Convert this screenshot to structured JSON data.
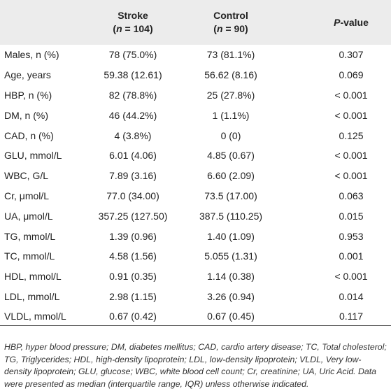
{
  "table": {
    "header": [
      {
        "line1": ""
      },
      {
        "line1": "Stroke",
        "open": "(",
        "n": "n",
        "rest": " = 104)"
      },
      {
        "line1": "Control",
        "open": "(",
        "n": "n",
        "rest": " = 90)"
      },
      {
        "p": "P",
        "rest": "-value"
      }
    ],
    "rows": [
      [
        "Males, n (%)",
        "78 (75.0%)",
        "73 (81.1%)",
        "0.307"
      ],
      [
        "Age, years",
        "59.38 (12.61)",
        "56.62 (8.16)",
        "0.069"
      ],
      [
        "HBP, n (%)",
        "82 (78.8%)",
        "25 (27.8%)",
        "< 0.001"
      ],
      [
        "DM, n (%)",
        "46 (44.2%)",
        "1 (1.1%)",
        "< 0.001"
      ],
      [
        "CAD, n (%)",
        "4 (3.8%)",
        "0 (0)",
        "0.125"
      ],
      [
        "GLU, mmol/L",
        "6.01 (4.06)",
        "4.85 (0.67)",
        "< 0.001"
      ],
      [
        "WBC, G/L",
        "7.89 (3.16)",
        "6.60 (2.09)",
        "< 0.001"
      ],
      [
        "Cr, μmol/L",
        "77.0 (34.00)",
        "73.5 (17.00)",
        "0.063"
      ],
      [
        "UA, μmol/L",
        "357.25 (127.50)",
        "387.5 (110.25)",
        "0.015"
      ],
      [
        "TG, mmol/L",
        "1.39 (0.96)",
        "1.40 (1.09)",
        "0.953"
      ],
      [
        "TC, mmol/L",
        "4.58 (1.56)",
        "5.055 (1.31)",
        "0.001"
      ],
      [
        "HDL, mmol/L",
        "0.91 (0.35)",
        "1.14 (0.38)",
        "< 0.001"
      ],
      [
        "LDL, mmol/L",
        "2.98 (1.15)",
        "3.26 (0.94)",
        "0.014"
      ],
      [
        "VLDL, mmol/L",
        "0.67 (0.42)",
        "0.67 (0.45)",
        "0.117"
      ]
    ],
    "footnote": "HBP, hyper blood pressure; DM, diabetes mellitus; CAD, cardio artery disease; TC, Total cholesterol; TG, Triglycerides; HDL, high-density lipoprotein; LDL, low-density lipoprotein; VLDL, Very low-density lipoprotein; GLU, glucose; WBC, white blood cell count; Cr, creatinine; UA, Uric Acid. Data were presented as median (interquartile range, IQR) unless otherwise indicated."
  }
}
